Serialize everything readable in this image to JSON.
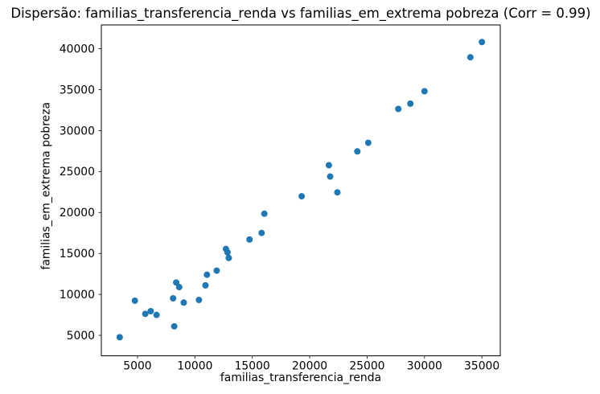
{
  "figure": {
    "background": "#ffffff"
  },
  "chart_data": {
    "type": "scatter",
    "title": "Dispersão: familias_transferencia_renda vs familias_em_extrema pobreza (Corr = 0.99)",
    "xlabel": "familias_transferencia_renda",
    "ylabel": "familias_em_extrema pobreza",
    "correlation": 0.99,
    "xlim": [
      1850,
      36600
    ],
    "ylim": [
      2500,
      42900
    ],
    "xticks": [
      5000,
      10000,
      15000,
      20000,
      25000,
      30000,
      35000
    ],
    "yticks": [
      5000,
      10000,
      15000,
      20000,
      25000,
      30000,
      35000,
      40000
    ],
    "grid": false,
    "legend": null,
    "axis_color": "#000000",
    "text_color": "#000000",
    "marker": {
      "shape": "circle",
      "color": "#1f77b4",
      "radius": 4
    },
    "points": [
      [
        3450,
        4770
      ],
      [
        4770,
        9230
      ],
      [
        5680,
        7620
      ],
      [
        6150,
        7950
      ],
      [
        6660,
        7490
      ],
      [
        8100,
        9520
      ],
      [
        8200,
        6100
      ],
      [
        8370,
        11450
      ],
      [
        8630,
        10890
      ],
      [
        9030,
        9000
      ],
      [
        10350,
        9320
      ],
      [
        10920,
        11100
      ],
      [
        11050,
        12400
      ],
      [
        11900,
        12900
      ],
      [
        12700,
        15550
      ],
      [
        12840,
        15140
      ],
      [
        12950,
        14450
      ],
      [
        14760,
        16700
      ],
      [
        15810,
        17500
      ],
      [
        16050,
        19850
      ],
      [
        19300,
        21980
      ],
      [
        21670,
        25770
      ],
      [
        21780,
        24390
      ],
      [
        22410,
        22460
      ],
      [
        24150,
        27460
      ],
      [
        25100,
        28510
      ],
      [
        27720,
        32640
      ],
      [
        28770,
        33290
      ],
      [
        30000,
        34800
      ],
      [
        34000,
        38950
      ],
      [
        35000,
        40810
      ]
    ]
  }
}
